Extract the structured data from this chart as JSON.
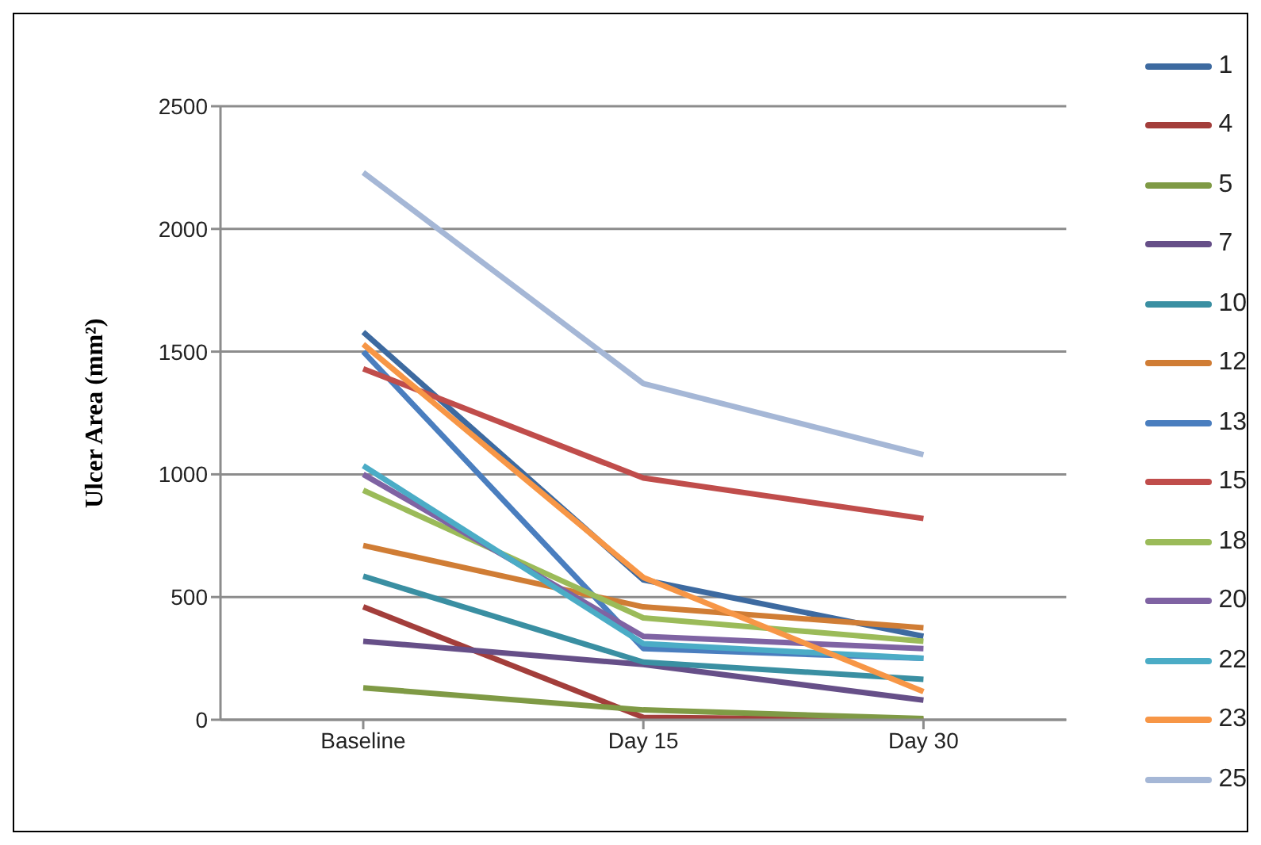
{
  "chart_data": {
    "type": "line",
    "ylabel": "Ulcer Area (mm²)",
    "categories": [
      "Baseline",
      "Day 15",
      "Day 30"
    ],
    "ylim": [
      0,
      2500
    ],
    "yticks": [
      0,
      500,
      1000,
      1500,
      2000,
      2500
    ],
    "grid": "y",
    "legend": "right",
    "marker": "none",
    "series": [
      {
        "name": "1",
        "color": "#3d6aa0",
        "values": [
          1580,
          570,
          340
        ]
      },
      {
        "name": "4",
        "color": "#a33e3b",
        "values": [
          460,
          10,
          0
        ]
      },
      {
        "name": "5",
        "color": "#7f9a45",
        "values": [
          130,
          40,
          5
        ]
      },
      {
        "name": "7",
        "color": "#664f88",
        "values": [
          320,
          225,
          80
        ]
      },
      {
        "name": "10",
        "color": "#3a8fa2",
        "values": [
          585,
          235,
          165
        ]
      },
      {
        "name": "12",
        "color": "#d07d35",
        "values": [
          710,
          460,
          375
        ]
      },
      {
        "name": "13",
        "color": "#4a7ebf",
        "values": [
          1500,
          290,
          250
        ]
      },
      {
        "name": "15",
        "color": "#c04d4b",
        "values": [
          1430,
          985,
          820
        ]
      },
      {
        "name": "18",
        "color": "#9bbb59",
        "values": [
          935,
          415,
          320
        ]
      },
      {
        "name": "20",
        "color": "#7f63a3",
        "values": [
          1000,
          340,
          290
        ]
      },
      {
        "name": "22",
        "color": "#4bacc6",
        "values": [
          1035,
          310,
          250
        ]
      },
      {
        "name": "23",
        "color": "#f79646",
        "values": [
          1530,
          580,
          115
        ]
      },
      {
        "name": "25",
        "color": "#a5b7d6",
        "values": [
          2230,
          1370,
          1080
        ]
      }
    ]
  }
}
